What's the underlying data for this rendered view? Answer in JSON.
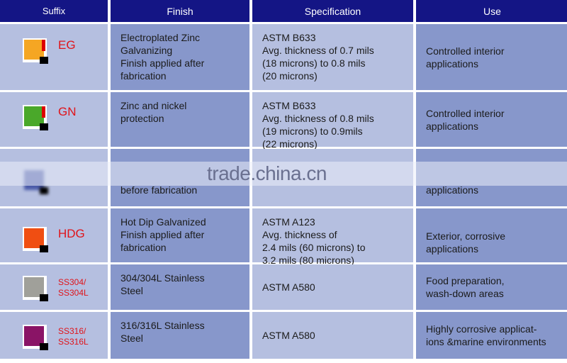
{
  "headers": [
    "Suffix",
    "Finish",
    "Specification",
    "Use"
  ],
  "rows": [
    {
      "suffix": "EG",
      "swatch": "#f5a623",
      "finish": [
        "Electroplated Zinc",
        "Galvanizing",
        "Finish applied after",
        "fabrication"
      ],
      "spec": [
        "ASTM B633",
        "Avg. thickness of 0.7 mils",
        "(18 microns) to 0.8 mils",
        "(20 microns)"
      ],
      "use": [
        "Controlled interior",
        "applications"
      ]
    },
    {
      "suffix": "GN",
      "swatch": "#4aa82a",
      "finish": [
        "Zinc and nickel",
        "protection"
      ],
      "spec": [
        "ASTM B633",
        "Avg. thickness of 0.8 mils",
        "(19 microns) to 0.9mils",
        "(22 microns)"
      ],
      "use": [
        "Controlled interior",
        "applications"
      ]
    },
    {
      "suffix": "",
      "swatch": "#4a5aa8",
      "finish": [
        "before fabrication"
      ],
      "spec": [],
      "use": [
        "applications"
      ]
    },
    {
      "suffix": "HDG",
      "swatch": "#f04e12",
      "finish": [
        "Hot Dip Galvanized",
        "Finish applied after",
        "fabrication"
      ],
      "spec": [
        "ASTM A123",
        "Avg. thickness of",
        "2.4 mils (60 microns) to",
        "3.2 mils (80 microns)"
      ],
      "use": [
        "Exterior, corrosive",
        "applications"
      ]
    },
    {
      "suffix": [
        "SS304/",
        "SS304L"
      ],
      "swatch": "#a0a09a",
      "finish": [
        "304/304L Stainless",
        "Steel"
      ],
      "spec": [
        "ASTM A580"
      ],
      "use": [
        "Food preparation,",
        "wash-down areas"
      ]
    },
    {
      "suffix": [
        "SS316/",
        "SS316L"
      ],
      "swatch": "#8a1466",
      "finish": [
        "316/316L Stainless",
        "Steel"
      ],
      "spec": [
        "ASTM A580"
      ],
      "use": [
        "Highly corrosive applicat-",
        "ions &marine environments"
      ]
    }
  ],
  "watermark": "trade.china.cn"
}
